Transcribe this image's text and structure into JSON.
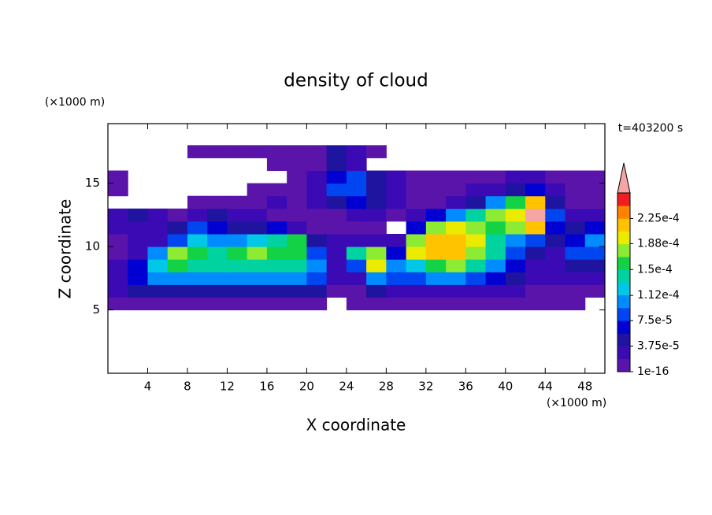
{
  "chart_data": {
    "type": "contour",
    "title": "density of cloud",
    "xlabel": "X coordinate",
    "ylabel": "Z coordinate",
    "xunit": "(×1000 m)",
    "yunit": "(×1000 m)",
    "time_label": "t=403200 s",
    "xlim": [
      0,
      50
    ],
    "ylim": [
      0,
      19.7
    ],
    "xticks": [
      4,
      8,
      12,
      16,
      20,
      24,
      28,
      32,
      36,
      40,
      44,
      48
    ],
    "yticks": [
      5,
      10,
      15
    ],
    "x": [
      1,
      3,
      5,
      7,
      9,
      11,
      13,
      15,
      17,
      19,
      21,
      23,
      25,
      27,
      29,
      31,
      33,
      35,
      37,
      39,
      41,
      43,
      45,
      47,
      49
    ],
    "y": [
      5.5,
      6.5,
      7.5,
      8.5,
      9.5,
      10.5,
      11.5,
      12.5,
      13.5,
      14.5,
      15.5,
      16.5,
      17.5
    ],
    "values": [
      [
        1e-05,
        1e-05,
        1e-05,
        1e-05,
        1e-05,
        1e-05,
        1e-05,
        1e-05,
        1e-05,
        1e-05,
        1e-05,
        null,
        1e-05,
        1e-05,
        1e-05,
        1e-05,
        1e-05,
        1e-05,
        1e-05,
        1e-05,
        1e-05,
        1e-05,
        1e-05,
        1e-05,
        null
      ],
      [
        2e-05,
        4e-05,
        5e-05,
        5e-05,
        5e-05,
        5e-05,
        5e-05,
        5e-05,
        5e-05,
        5e-05,
        4e-05,
        1e-05,
        1e-05,
        4e-05,
        3e-05,
        3e-05,
        3e-05,
        3e-05,
        2e-05,
        2e-05,
        2e-05,
        1e-05,
        1e-05,
        1e-05,
        1e-05
      ],
      [
        3e-05,
        7e-05,
        0.0001,
        0.00011,
        0.00011,
        0.00011,
        0.00011,
        0.00011,
        0.00011,
        0.00011,
        9e-05,
        2e-05,
        2e-05,
        0.0001,
        9e-05,
        8e-05,
        0.0001,
        0.0001,
        8e-05,
        6e-05,
        4e-05,
        3e-05,
        2e-05,
        3e-05,
        3e-05
      ],
      [
        2e-05,
        6e-05,
        0.00012,
        0.00016,
        0.00015,
        0.00015,
        0.00014,
        0.00015,
        0.00015,
        0.00014,
        0.0001,
        3e-05,
        8e-05,
        0.0002,
        0.0001,
        0.00012,
        0.00016,
        0.00018,
        0.00014,
        0.0001,
        6e-05,
        3e-05,
        3e-05,
        5e-05,
        4e-05
      ],
      [
        1e-05,
        3e-05,
        0.0001,
        0.00017,
        0.00016,
        0.00015,
        0.00016,
        0.00017,
        0.00016,
        0.00016,
        8e-05,
        3e-05,
        0.00015,
        0.00018,
        6e-05,
        0.0002,
        0.00022,
        0.00021,
        0.00018,
        0.00015,
        8e-05,
        4e-05,
        3e-05,
        8e-05,
        9e-05
      ],
      [
        1e-05,
        2e-05,
        3e-05,
        9e-05,
        0.00012,
        0.0001,
        0.0001,
        0.00012,
        0.00014,
        0.00016,
        5e-05,
        2e-05,
        3e-05,
        2e-05,
        3e-05,
        0.00018,
        0.00022,
        0.00022,
        0.0002,
        0.00014,
        0.0001,
        8e-05,
        5e-05,
        6e-05,
        0.0001
      ],
      [
        2e-05,
        3e-05,
        2e-05,
        4e-05,
        8e-05,
        6e-05,
        4e-05,
        5e-05,
        6e-05,
        3e-05,
        1e-05,
        1e-05,
        1e-05,
        1e-05,
        null,
        6e-05,
        0.00018,
        0.0002,
        0.00018,
        0.00016,
        0.00018,
        0.00022,
        6e-05,
        4e-05,
        6e-05
      ],
      [
        2e-05,
        4e-05,
        2e-05,
        1e-05,
        3e-05,
        4e-05,
        3e-05,
        2e-05,
        1e-05,
        1e-05,
        1e-05,
        1e-05,
        2e-05,
        2e-05,
        1e-05,
        2e-05,
        6e-05,
        0.0001,
        0.00014,
        0.00018,
        0.0002,
        0.00027,
        8e-05,
        2e-05,
        2e-05
      ],
      [
        null,
        null,
        null,
        null,
        1e-05,
        1e-05,
        1e-05,
        1e-05,
        2e-05,
        1e-05,
        2e-05,
        4e-05,
        6e-05,
        4e-05,
        2e-05,
        1e-05,
        1e-05,
        2e-05,
        5e-05,
        0.0001,
        0.00016,
        0.00022,
        5e-05,
        1e-05,
        1e-05
      ],
      [
        1e-05,
        null,
        null,
        null,
        null,
        null,
        null,
        1e-05,
        1e-05,
        1e-05,
        2e-05,
        8e-05,
        9e-05,
        5e-05,
        2e-05,
        1e-05,
        1e-05,
        1e-05,
        2e-05,
        3e-05,
        5e-05,
        7e-05,
        2e-05,
        1e-05,
        1e-05
      ],
      [
        1e-05,
        null,
        null,
        null,
        null,
        null,
        null,
        null,
        null,
        1e-05,
        2e-05,
        6e-05,
        8e-05,
        4e-05,
        2e-05,
        1e-05,
        1e-05,
        1e-05,
        1e-05,
        1e-05,
        2e-05,
        3e-05,
        1e-05,
        1e-05,
        1e-05
      ],
      [
        null,
        null,
        null,
        null,
        null,
        null,
        null,
        null,
        1e-05,
        1e-05,
        1e-05,
        5e-05,
        3e-05,
        null,
        null,
        null,
        null,
        null,
        null,
        null,
        null,
        null,
        null,
        null,
        null
      ],
      [
        null,
        null,
        null,
        null,
        1e-05,
        1e-05,
        1e-05,
        1e-05,
        1e-05,
        1e-05,
        1e-05,
        4e-05,
        3e-05,
        1e-05,
        null,
        null,
        null,
        null,
        null,
        null,
        null,
        null,
        null,
        null,
        null
      ]
    ],
    "clim": [
      1e-16,
      0.0002625
    ],
    "colors": [
      "#5a14aa",
      "#3c0ab4",
      "#1e14a0",
      "#0000d2",
      "#0046f0",
      "#008cff",
      "#00c8e6",
      "#00d2a0",
      "#14d246",
      "#8ceb32",
      "#ebeb00",
      "#ffc300",
      "#ff8200",
      "#f01e1e"
    ],
    "over_color": "#f5a5a5",
    "colorbar_ticks": [
      {
        "value": 1e-16,
        "label": "1e-16"
      },
      {
        "value": 3.75e-05,
        "label": "3.75e-5"
      },
      {
        "value": 7.5e-05,
        "label": "7.5e-5"
      },
      {
        "value": 0.000112,
        "label": "1.12e-4"
      },
      {
        "value": 0.00015,
        "label": "1.5e-4"
      },
      {
        "value": 0.000188,
        "label": "1.88e-4"
      },
      {
        "value": 0.000225,
        "label": "2.25e-4"
      }
    ]
  }
}
